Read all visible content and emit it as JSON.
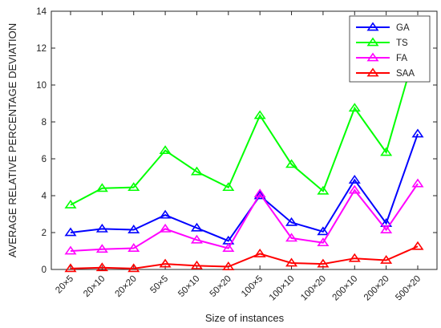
{
  "chart_data": {
    "type": "line",
    "title": "",
    "xlabel": "Size of instances",
    "ylabel": "AVERAGE RELATIVE PERCENTAGE DEVIATION",
    "ylim": [
      0,
      14
    ],
    "yticks": [
      0,
      2,
      4,
      6,
      8,
      10,
      12,
      14
    ],
    "grid": false,
    "legend_position": "top-right",
    "categories": [
      "20×5",
      "20×10",
      "20×20",
      "50×5",
      "50×10",
      "50×20",
      "100×5",
      "100×10",
      "100×20",
      "200×10",
      "200×20",
      "500×20"
    ],
    "series": [
      {
        "name": "GA",
        "color": "#0000ff",
        "marker": "triangle",
        "values": [
          2.0,
          2.2,
          2.15,
          2.95,
          2.25,
          1.55,
          4.0,
          2.55,
          2.05,
          4.85,
          2.5,
          7.35
        ]
      },
      {
        "name": "TS",
        "color": "#00ff00",
        "marker": "triangle",
        "values": [
          3.5,
          4.4,
          4.45,
          6.45,
          5.3,
          4.45,
          8.35,
          5.7,
          4.25,
          8.75,
          6.35,
          12.3
        ]
      },
      {
        "name": "FA",
        "color": "#ff00ff",
        "marker": "triangle",
        "values": [
          1.0,
          1.1,
          1.15,
          2.2,
          1.6,
          1.15,
          4.1,
          1.7,
          1.45,
          4.3,
          2.15,
          4.65
        ]
      },
      {
        "name": "SAA",
        "color": "#ff0000",
        "marker": "triangle",
        "values": [
          0.05,
          0.1,
          0.05,
          0.3,
          0.2,
          0.15,
          0.85,
          0.35,
          0.3,
          0.6,
          0.5,
          1.25
        ]
      }
    ]
  }
}
